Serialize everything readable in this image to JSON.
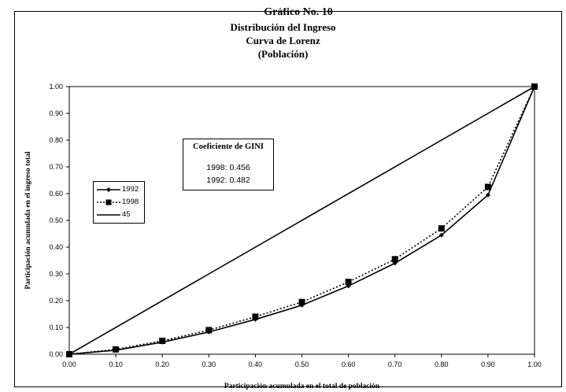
{
  "header_fragment": "Gráfico No. 10",
  "chart_data": {
    "type": "line",
    "title": [
      "Distribución del Ingreso",
      "Curva de Lorenz",
      "(Población)"
    ],
    "xlabel": "Participación acumulada en el total de población",
    "ylabel": "Participación acumulada en el ingreso total",
    "xlim": [
      0,
      1
    ],
    "ylim": [
      0,
      1
    ],
    "x_ticks": [
      "0.00",
      "0.10",
      "0.20",
      "0.30",
      "0.40",
      "0.50",
      "0.60",
      "0.70",
      "0.80",
      "0.90",
      "1.00"
    ],
    "y_ticks": [
      "0.00",
      "0.10",
      "0.20",
      "0.30",
      "0.40",
      "0.50",
      "0.60",
      "0.70",
      "0.80",
      "0.90",
      "1.00"
    ],
    "grid": false,
    "legend_position": "left",
    "series": [
      {
        "name": "1992",
        "style": "solid line with small diamond markers",
        "x": [
          0,
          0.1,
          0.2,
          0.3,
          0.4,
          0.5,
          0.6,
          0.7,
          0.8,
          0.9,
          1.0
        ],
        "y": [
          0,
          0.015,
          0.045,
          0.083,
          0.13,
          0.183,
          0.255,
          0.34,
          0.445,
          0.595,
          1.0
        ]
      },
      {
        "name": "1998",
        "style": "dotted line with square markers",
        "x": [
          0,
          0.1,
          0.2,
          0.3,
          0.4,
          0.5,
          0.6,
          0.7,
          0.8,
          0.9,
          1.0
        ],
        "y": [
          0,
          0.018,
          0.05,
          0.09,
          0.14,
          0.195,
          0.27,
          0.355,
          0.47,
          0.625,
          1.0
        ]
      },
      {
        "name": "45",
        "style": "solid line",
        "x": [
          0,
          1
        ],
        "y": [
          0,
          1
        ]
      }
    ],
    "annotation": {
      "title": "Coeficiente de GINI",
      "rows": [
        "1998:  0.456",
        "1992: 0.482"
      ]
    }
  }
}
